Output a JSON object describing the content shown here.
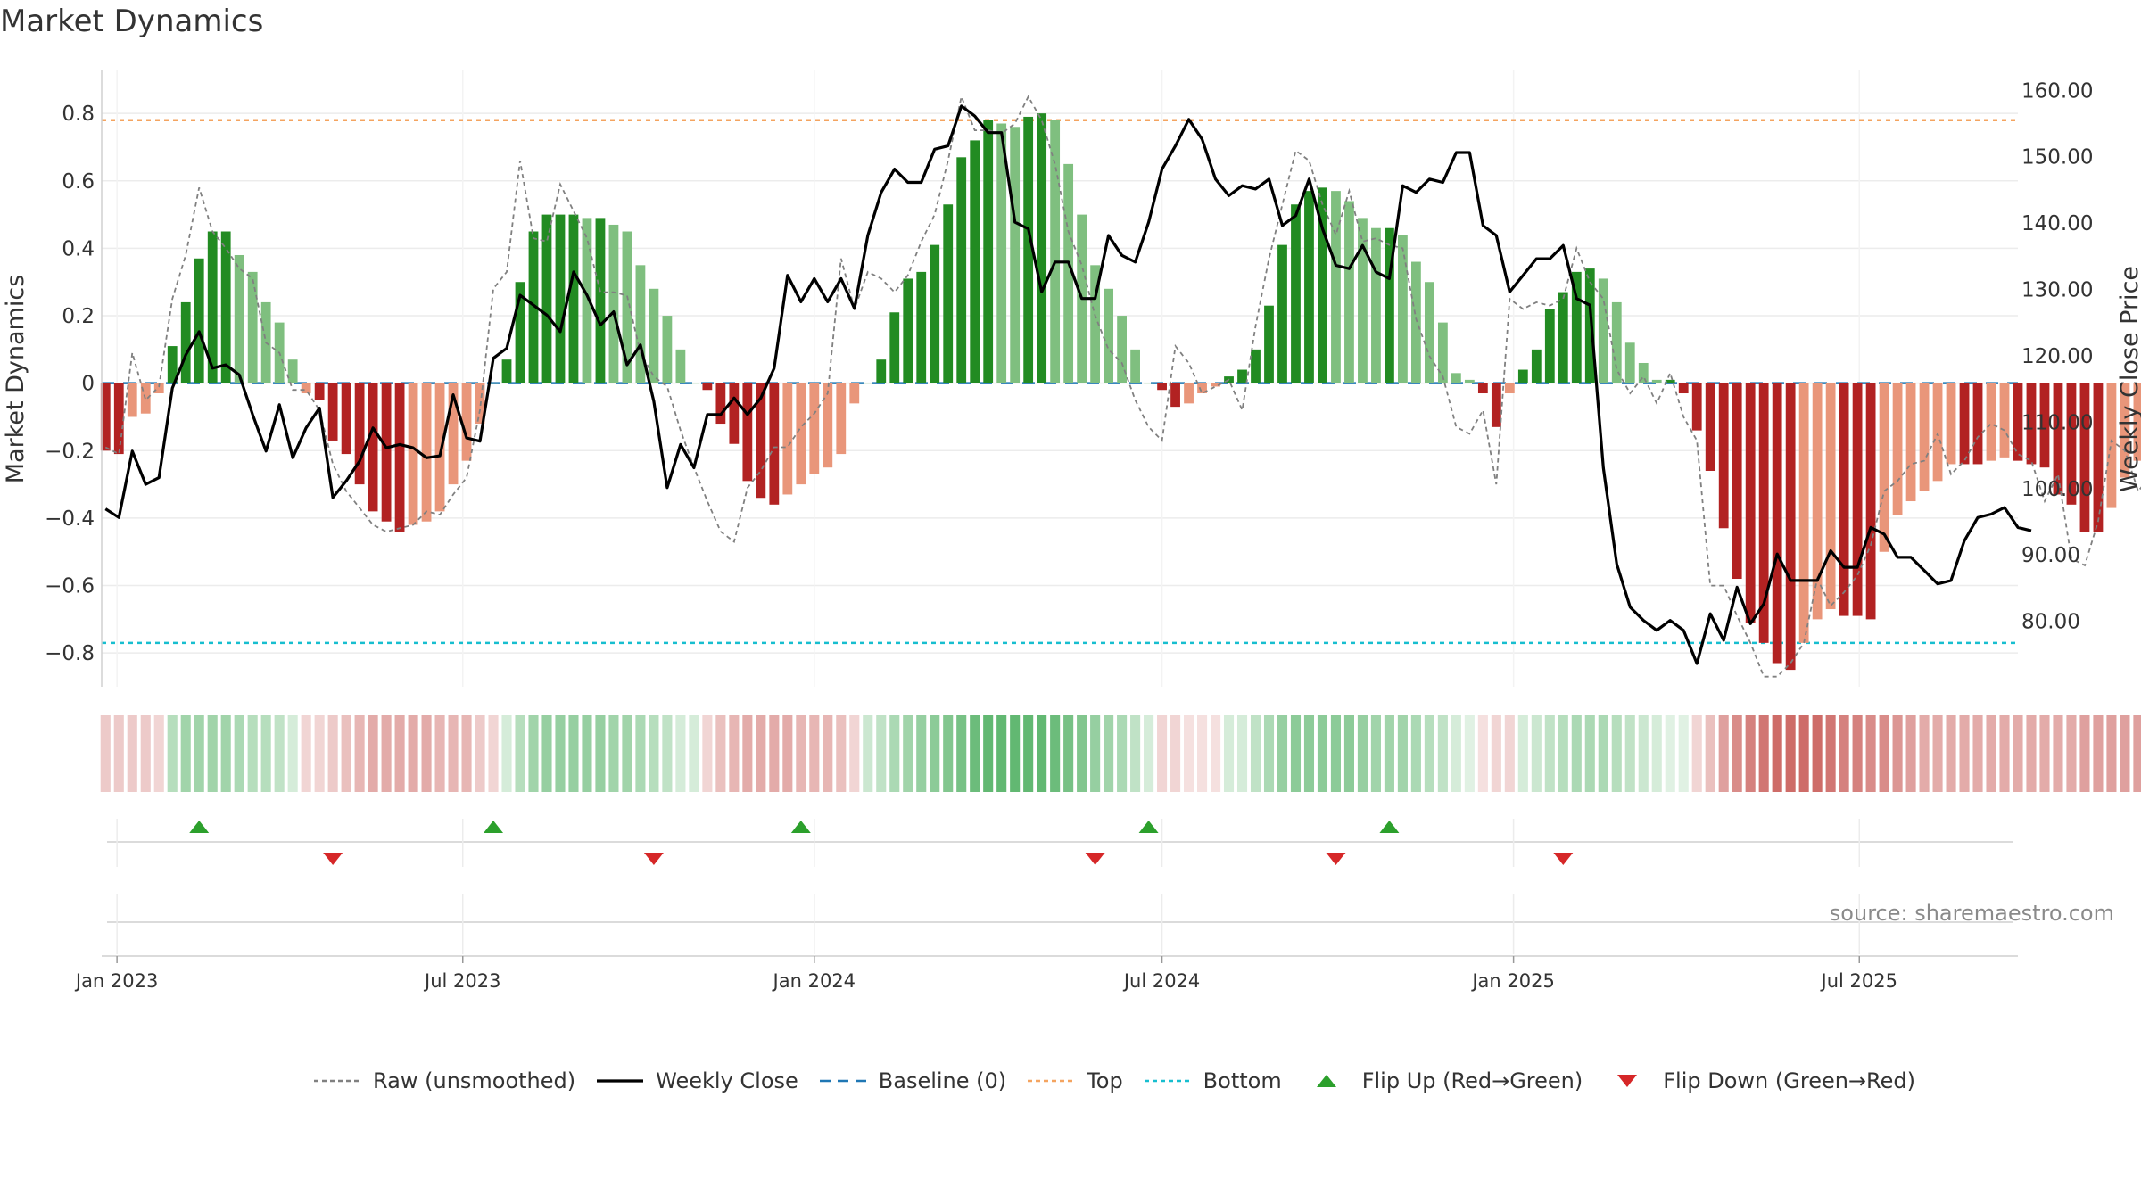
{
  "title": "Market Dynamics",
  "source": "source: sharemaestro.com",
  "colors": {
    "strong_green": "#228b22",
    "light_green": "#7fbf7f",
    "strong_red": "#b22222",
    "light_red": "#e9967a",
    "raw": "#808080",
    "close": "#000000",
    "baseline": "#1f77b4",
    "top": "#f4a460",
    "bottom": "#17becf",
    "flip_up": "#2ca02c",
    "flip_down": "#d62728"
  },
  "legend": [
    {
      "key": "raw",
      "label": "Raw (unsmoothed)"
    },
    {
      "key": "close",
      "label": "Weekly Close"
    },
    {
      "key": "baseline",
      "label": "Baseline (0)"
    },
    {
      "key": "top",
      "label": "Top"
    },
    {
      "key": "bottom",
      "label": "Bottom"
    },
    {
      "key": "flip_up",
      "label": "Flip Up (Red→Green)"
    },
    {
      "key": "flip_down",
      "label": "Flip Down (Green→Red)"
    }
  ],
  "chart_data": {
    "type": "bar",
    "ylabel": "Market Dynamics",
    "y2label": "Weekly Close Price",
    "ylim": [
      -0.9,
      0.93
    ],
    "y2lim": [
      70,
      163
    ],
    "yticks": [
      -0.8,
      -0.6,
      -0.4,
      -0.2,
      0,
      0.2,
      0.4,
      0.6,
      0.8
    ],
    "yticklabels": [
      "−0.8",
      "−0.6",
      "−0.4",
      "−0.2",
      "0",
      "0.2",
      "0.4",
      "0.6",
      "0.8"
    ],
    "y2ticks": [
      80,
      90,
      100,
      110,
      120,
      130,
      140,
      150,
      160
    ],
    "y2ticklabels": [
      "80.00",
      "90.00",
      "100.00",
      "110.00",
      "120.00",
      "130.00",
      "140.00",
      "150.00",
      "160.00"
    ],
    "xlim": [
      "2022-12-24",
      "2025-09-22"
    ],
    "xticks": [
      "2023-01-01",
      "2023-07-01",
      "2024-01-01",
      "2024-07-01",
      "2025-01-01",
      "2025-07-01"
    ],
    "xticklabels": [
      "Jan 2023",
      "Jul 2023",
      "Jan 2024",
      "Jul 2024",
      "Jan 2025",
      "Jul 2025"
    ],
    "first_week": "2022-12-26",
    "top_line": 0.78,
    "bottom_line": -0.77,
    "baseline": 0,
    "grid": true,
    "legend_position": "bottom",
    "series": [
      {
        "name": "Market Dynamics",
        "type": "bar",
        "values": [
          -0.2,
          -0.21,
          -0.1,
          -0.09,
          -0.03,
          0.11,
          0.24,
          0.37,
          0.45,
          0.45,
          0.38,
          0.33,
          0.24,
          0.18,
          0.07,
          -0.03,
          -0.05,
          -0.17,
          -0.21,
          -0.3,
          -0.38,
          -0.41,
          -0.44,
          -0.42,
          -0.41,
          -0.38,
          -0.3,
          -0.23,
          -0.12,
          0.0,
          0.07,
          0.3,
          0.45,
          0.5,
          0.5,
          0.5,
          0.49,
          0.49,
          0.47,
          0.45,
          0.35,
          0.28,
          0.2,
          0.1,
          0.0,
          -0.02,
          -0.12,
          -0.18,
          -0.29,
          -0.34,
          -0.36,
          -0.33,
          -0.3,
          -0.27,
          -0.25,
          -0.21,
          -0.06,
          0.0,
          0.07,
          0.21,
          0.31,
          0.33,
          0.41,
          0.53,
          0.67,
          0.72,
          0.78,
          0.77,
          0.76,
          0.79,
          0.8,
          0.78,
          0.65,
          0.5,
          0.35,
          0.28,
          0.2,
          0.1,
          0.0,
          -0.02,
          -0.07,
          -0.06,
          -0.03,
          -0.01,
          0.02,
          0.04,
          0.1,
          0.23,
          0.41,
          0.53,
          0.57,
          0.58,
          0.57,
          0.54,
          0.49,
          0.46,
          0.46,
          0.44,
          0.36,
          0.3,
          0.18,
          0.03,
          0.01,
          -0.03,
          -0.13,
          -0.03,
          0.04,
          0.1,
          0.22,
          0.27,
          0.33,
          0.34,
          0.31,
          0.24,
          0.12,
          0.06,
          0.01,
          0.01,
          -0.03,
          -0.14,
          -0.26,
          -0.43,
          -0.58,
          -0.71,
          -0.77,
          -0.83,
          -0.85,
          -0.77,
          -0.7,
          -0.67,
          -0.69,
          -0.69,
          -0.7,
          -0.5,
          -0.39,
          -0.35,
          -0.32,
          -0.29,
          -0.24,
          -0.24,
          -0.24,
          -0.23,
          -0.22,
          -0.23,
          -0.24,
          -0.25,
          -0.33,
          -0.36,
          -0.44,
          -0.44,
          -0.37,
          -0.28,
          -0.23,
          -0.26
        ]
      },
      {
        "name": "Raw (unsmoothed)",
        "type": "line",
        "values": [
          -0.19,
          -0.21,
          0.09,
          -0.05,
          -0.01,
          0.25,
          0.38,
          0.58,
          0.45,
          0.4,
          0.34,
          0.31,
          0.12,
          0.09,
          -0.02,
          -0.02,
          -0.08,
          -0.24,
          -0.32,
          -0.37,
          -0.42,
          -0.44,
          -0.43,
          -0.42,
          -0.38,
          -0.39,
          -0.33,
          -0.28,
          -0.08,
          0.28,
          0.33,
          0.66,
          0.43,
          0.42,
          0.59,
          0.51,
          0.43,
          0.27,
          0.27,
          0.26,
          0.09,
          0.02,
          -0.01,
          -0.14,
          -0.25,
          -0.35,
          -0.44,
          -0.47,
          -0.31,
          -0.26,
          -0.19,
          -0.19,
          -0.13,
          -0.09,
          -0.03,
          0.37,
          0.22,
          0.33,
          0.31,
          0.27,
          0.32,
          0.42,
          0.5,
          0.66,
          0.85,
          0.75,
          0.75,
          0.74,
          0.77,
          0.85,
          0.78,
          0.65,
          0.45,
          0.35,
          0.2,
          0.1,
          0.06,
          -0.05,
          -0.13,
          -0.17,
          0.11,
          0.06,
          -0.03,
          -0.01,
          0.01,
          -0.08,
          0.17,
          0.37,
          0.53,
          0.69,
          0.66,
          0.53,
          0.44,
          0.57,
          0.42,
          0.43,
          0.41,
          0.4,
          0.19,
          0.08,
          0.02,
          -0.13,
          -0.15,
          -0.08,
          -0.3,
          0.25,
          0.22,
          0.24,
          0.23,
          0.25,
          0.4,
          0.3,
          0.25,
          0.04,
          -0.03,
          0.02,
          -0.06,
          0.03,
          -0.1,
          -0.17,
          -0.6,
          -0.6,
          -0.69,
          -0.77,
          -0.87,
          -0.87,
          -0.83,
          -0.77,
          -0.58,
          -0.66,
          -0.62,
          -0.57,
          -0.48,
          -0.32,
          -0.29,
          -0.24,
          -0.23,
          -0.15,
          -0.27,
          -0.23,
          -0.16,
          -0.12,
          -0.14,
          -0.21,
          -0.23,
          -0.35,
          -0.27,
          -0.52,
          -0.54,
          -0.41,
          -0.17,
          -0.2,
          -0.32,
          -0.27
        ]
      },
      {
        "name": "Weekly Close",
        "type": "line",
        "axis": "right",
        "values": [
          96.8,
          95.5,
          105.5,
          100.5,
          101.5,
          115,
          120,
          123.5,
          118,
          118.5,
          117,
          111,
          105.5,
          112.5,
          104.5,
          109,
          112,
          98.5,
          101,
          104,
          109,
          106,
          106.5,
          106,
          104.5,
          104.8,
          114,
          107.5,
          107,
          119.5,
          121,
          129,
          127.5,
          126,
          123.5,
          132.5,
          129,
          124.5,
          126.5,
          118.5,
          121.5,
          113,
          100,
          106.5,
          103,
          111,
          111,
          113.5,
          111,
          113.5,
          118,
          132,
          128,
          131.5,
          128,
          131.5,
          127,
          138,
          144.5,
          148,
          146,
          146,
          151,
          151.5,
          157.5,
          156,
          153.5,
          153.5,
          140,
          139,
          129.5,
          134,
          134,
          128.5,
          128.5,
          138,
          135,
          134,
          140,
          148,
          151.5,
          155.5,
          152.5,
          146.5,
          144,
          145.5,
          145,
          146.5,
          139.5,
          141,
          146.5,
          139,
          133.5,
          133,
          136.5,
          132.5,
          131.5,
          145.5,
          144.5,
          146.5,
          146,
          150.5,
          150.5,
          139.5,
          138,
          129.5,
          132,
          134.5,
          134.5,
          136.5,
          128.5,
          127.5,
          103,
          88.5,
          82,
          80,
          78.5,
          80,
          78.5,
          73.5,
          81,
          77,
          85,
          79.5,
          82.5,
          90,
          86,
          86,
          86,
          90.5,
          88,
          88,
          94,
          93,
          89.5,
          89.5,
          87.5,
          85.5,
          86,
          92,
          95.5,
          96,
          97,
          94,
          93.5
        ]
      }
    ],
    "regime_strip": {
      "levels": [
        0.25,
        0.25,
        0.25,
        0.25,
        0.2,
        0.35,
        0.45,
        0.45,
        0.45,
        0.45,
        0.4,
        0.35,
        0.35,
        0.3,
        0.2,
        0.2,
        0.2,
        0.25,
        0.3,
        0.35,
        0.4,
        0.4,
        0.4,
        0.4,
        0.4,
        0.35,
        0.35,
        0.35,
        0.25,
        0.2,
        0.2,
        0.35,
        0.45,
        0.5,
        0.5,
        0.5,
        0.5,
        0.5,
        0.45,
        0.45,
        0.4,
        0.35,
        0.3,
        0.2,
        0.2,
        0.2,
        0.3,
        0.35,
        0.4,
        0.4,
        0.4,
        0.4,
        0.35,
        0.35,
        0.35,
        0.3,
        0.2,
        0.25,
        0.3,
        0.4,
        0.45,
        0.5,
        0.55,
        0.6,
        0.65,
        0.7,
        0.75,
        0.75,
        0.75,
        0.75,
        0.75,
        0.7,
        0.65,
        0.6,
        0.5,
        0.45,
        0.4,
        0.3,
        0.2,
        0.2,
        0.2,
        0.15,
        0.15,
        0.15,
        0.2,
        0.2,
        0.3,
        0.4,
        0.5,
        0.55,
        0.55,
        0.55,
        0.55,
        0.55,
        0.5,
        0.45,
        0.45,
        0.45,
        0.4,
        0.35,
        0.3,
        0.2,
        0.15,
        0.15,
        0.2,
        0.2,
        0.2,
        0.25,
        0.3,
        0.35,
        0.4,
        0.4,
        0.4,
        0.35,
        0.3,
        0.25,
        0.2,
        0.15,
        0.15,
        0.2,
        0.3,
        0.45,
        0.55,
        0.6,
        0.65,
        0.7,
        0.7,
        0.7,
        0.7,
        0.65,
        0.6,
        0.6,
        0.55,
        0.55,
        0.5,
        0.45,
        0.4,
        0.4,
        0.4,
        0.4,
        0.4,
        0.4,
        0.4,
        0.4,
        0.4,
        0.4,
        0.4,
        0.4,
        0.45,
        0.45,
        0.45,
        0.45,
        0.45,
        0.4,
        0.35,
        0.35
      ],
      "colors_by_week": [
        "red",
        "red",
        "red",
        "red",
        "red",
        "green",
        "green",
        "green",
        "green",
        "green",
        "green",
        "green",
        "green",
        "green",
        "green",
        "red",
        "red",
        "red",
        "red",
        "red",
        "red",
        "red",
        "red",
        "red",
        "red",
        "red",
        "red",
        "red",
        "red",
        "red",
        "green",
        "green",
        "green",
        "green",
        "green",
        "green",
        "green",
        "green",
        "green",
        "green",
        "green",
        "green",
        "green",
        "green",
        "green",
        "red",
        "red",
        "red",
        "red",
        "red",
        "red",
        "red",
        "red",
        "red",
        "red",
        "red",
        "red",
        "green",
        "green",
        "green",
        "green",
        "green",
        "green",
        "green",
        "green",
        "green",
        "green",
        "green",
        "green",
        "green",
        "green",
        "green",
        "green",
        "green",
        "green",
        "green",
        "green",
        "green",
        "green",
        "red",
        "red",
        "red",
        "red",
        "red",
        "green",
        "green",
        "green",
        "green",
        "green",
        "green",
        "green",
        "green",
        "green",
        "green",
        "green",
        "green",
        "green",
        "green",
        "green",
        "green",
        "green",
        "green",
        "green",
        "red",
        "red",
        "red",
        "green",
        "green",
        "green",
        "green",
        "green",
        "green",
        "green",
        "green",
        "green",
        "green",
        "green",
        "green",
        "green",
        "red",
        "red",
        "red",
        "red",
        "red",
        "red",
        "red",
        "red",
        "red",
        "red",
        "red",
        "red",
        "red",
        "red",
        "red",
        "red",
        "red",
        "red",
        "red",
        "red",
        "red",
        "red",
        "red",
        "red",
        "red",
        "red",
        "red",
        "red",
        "red",
        "red",
        "red",
        "red",
        "red",
        "red",
        "red",
        "red"
      ]
    },
    "flip_up_dates": [
      "2023-02-13",
      "2023-07-17",
      "2023-12-25",
      "2024-06-24",
      "2024-10-28"
    ],
    "flip_down_dates": [
      "2023-04-24",
      "2023-10-09",
      "2024-05-27",
      "2024-09-30",
      "2025-01-27"
    ]
  }
}
